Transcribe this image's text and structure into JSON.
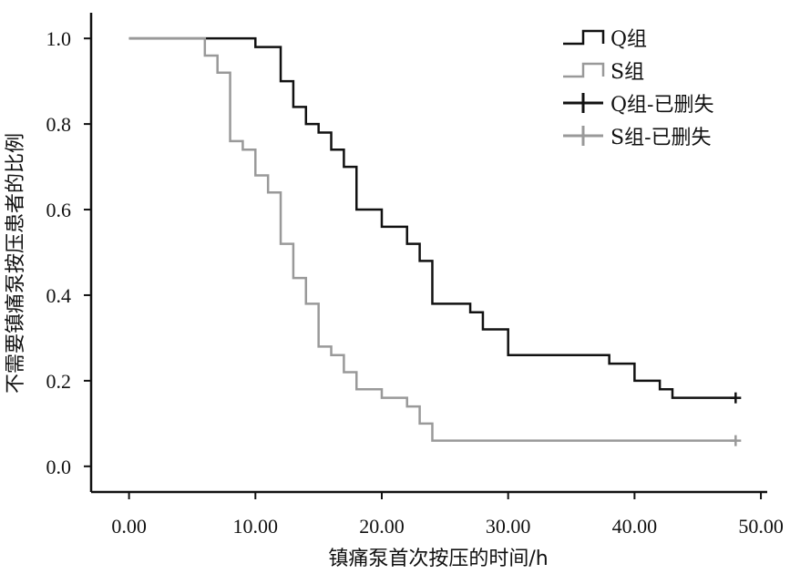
{
  "chart_data": {
    "type": "line",
    "xlabel": "镇痛泵首次按压的时间/h",
    "ylabel": "不需要镇痛泵按压患者的比例",
    "xlim": [
      -3,
      50.5
    ],
    "ylim": [
      -0.06,
      1.06
    ],
    "x_ticks": [
      0,
      10,
      20,
      30,
      40,
      50
    ],
    "x_tick_labels": [
      "0.00",
      "10.00",
      "20.00",
      "30.00",
      "40.00",
      "50.00"
    ],
    "y_ticks": [
      0,
      0.2,
      0.4,
      0.6,
      0.8,
      1.0
    ],
    "y_tick_labels": [
      "0.0",
      "0.2",
      "0.4",
      "0.6",
      "0.8",
      "1.0"
    ],
    "grid": false,
    "legend_position": "top-right",
    "legend": [
      {
        "label": "Q组",
        "kind": "step",
        "series": "Q组"
      },
      {
        "label": "S组",
        "kind": "step",
        "series": "S组"
      },
      {
        "label": "Q组-已删失",
        "kind": "censor",
        "series": "Q组"
      },
      {
        "label": "S组-已删失",
        "kind": "censor",
        "series": "S组"
      }
    ],
    "series": [
      {
        "name": "Q组",
        "color": "#111111",
        "steps": [
          [
            0,
            1.0
          ],
          [
            10,
            0.98
          ],
          [
            12,
            0.9
          ],
          [
            13,
            0.84
          ],
          [
            14,
            0.8
          ],
          [
            15,
            0.78
          ],
          [
            16,
            0.74
          ],
          [
            17,
            0.7
          ],
          [
            18,
            0.6
          ],
          [
            20,
            0.56
          ],
          [
            22,
            0.52
          ],
          [
            23,
            0.48
          ],
          [
            24,
            0.38
          ],
          [
            27,
            0.36
          ],
          [
            28,
            0.32
          ],
          [
            30,
            0.26
          ],
          [
            38,
            0.24
          ],
          [
            40,
            0.2
          ],
          [
            42,
            0.18
          ],
          [
            43,
            0.16
          ]
        ],
        "end_x": 48,
        "censored": [
          [
            48,
            0.16
          ]
        ]
      },
      {
        "name": "S组",
        "color": "#999999",
        "steps": [
          [
            0,
            1.0
          ],
          [
            6,
            0.96
          ],
          [
            7,
            0.92
          ],
          [
            8,
            0.76
          ],
          [
            9,
            0.74
          ],
          [
            10,
            0.68
          ],
          [
            11,
            0.64
          ],
          [
            12,
            0.52
          ],
          [
            13,
            0.44
          ],
          [
            14,
            0.38
          ],
          [
            15,
            0.28
          ],
          [
            16,
            0.26
          ],
          [
            17,
            0.22
          ],
          [
            18,
            0.18
          ],
          [
            20,
            0.16
          ],
          [
            22,
            0.14
          ],
          [
            23,
            0.1
          ],
          [
            24,
            0.06
          ]
        ],
        "end_x": 48,
        "censored": [
          [
            48,
            0.06
          ]
        ]
      }
    ]
  }
}
